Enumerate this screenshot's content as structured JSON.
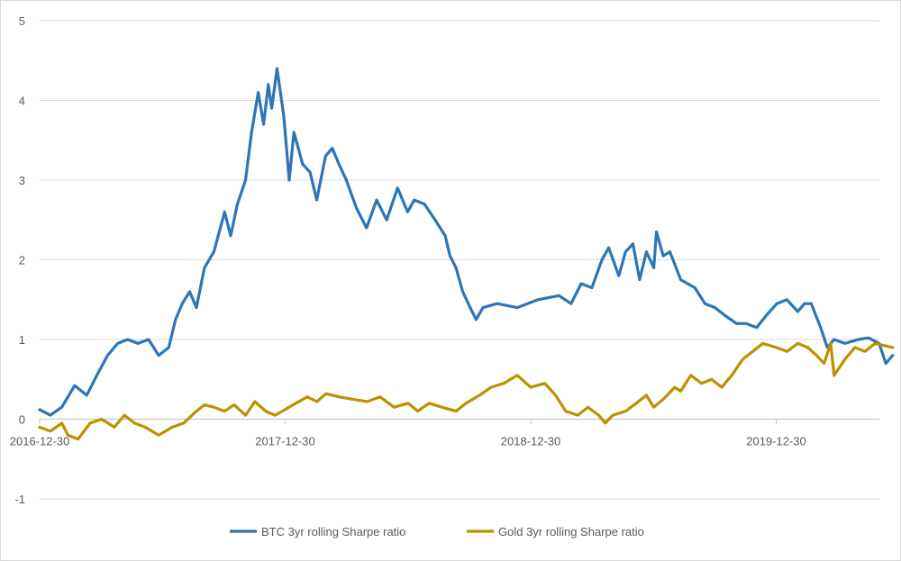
{
  "chart_data": {
    "type": "line",
    "title": "",
    "xlabel": "",
    "ylabel": "",
    "ylim": [
      -1,
      5
    ],
    "y_ticks": [
      "-1",
      "0",
      "1",
      "2",
      "3",
      "4",
      "5"
    ],
    "x_ticks": [
      "2016-12-30",
      "2017-12-30",
      "2018-12-30",
      "2019-12-30"
    ],
    "grid": "horizontal",
    "legend_position": "bottom",
    "series": [
      {
        "name": "BTC 3yr rolling Sharpe ratio",
        "color": "#2e75b6",
        "points": [
          [
            "2016-12-30",
            0.12
          ],
          [
            "2017-01-15",
            0.05
          ],
          [
            "2017-02-01",
            0.15
          ],
          [
            "2017-02-20",
            0.42
          ],
          [
            "2017-03-10",
            0.3
          ],
          [
            "2017-03-25",
            0.55
          ],
          [
            "2017-04-10",
            0.8
          ],
          [
            "2017-04-25",
            0.95
          ],
          [
            "2017-05-10",
            1.0
          ],
          [
            "2017-05-25",
            0.95
          ],
          [
            "2017-06-10",
            1.0
          ],
          [
            "2017-06-25",
            0.8
          ],
          [
            "2017-07-10",
            0.9
          ],
          [
            "2017-07-20",
            1.25
          ],
          [
            "2017-07-30",
            1.45
          ],
          [
            "2017-08-10",
            1.6
          ],
          [
            "2017-08-20",
            1.4
          ],
          [
            "2017-09-01",
            1.9
          ],
          [
            "2017-09-15",
            2.1
          ],
          [
            "2017-10-01",
            2.6
          ],
          [
            "2017-10-10",
            2.3
          ],
          [
            "2017-10-20",
            2.7
          ],
          [
            "2017-11-01",
            3.0
          ],
          [
            "2017-11-10",
            3.6
          ],
          [
            "2017-11-20",
            4.1
          ],
          [
            "2017-11-28",
            3.7
          ],
          [
            "2017-12-05",
            4.2
          ],
          [
            "2017-12-10",
            3.9
          ],
          [
            "2017-12-18",
            4.4
          ],
          [
            "2017-12-28",
            3.8
          ],
          [
            "2018-01-05",
            3.0
          ],
          [
            "2018-01-12",
            3.6
          ],
          [
            "2018-01-25",
            3.2
          ],
          [
            "2018-02-05",
            3.1
          ],
          [
            "2018-02-15",
            2.75
          ],
          [
            "2018-02-28",
            3.3
          ],
          [
            "2018-03-10",
            3.4
          ],
          [
            "2018-03-20",
            3.2
          ],
          [
            "2018-03-31",
            3.0
          ],
          [
            "2018-04-15",
            2.65
          ],
          [
            "2018-04-30",
            2.4
          ],
          [
            "2018-05-15",
            2.75
          ],
          [
            "2018-05-30",
            2.5
          ],
          [
            "2018-06-15",
            2.9
          ],
          [
            "2018-06-30",
            2.6
          ],
          [
            "2018-07-10",
            2.75
          ],
          [
            "2018-07-25",
            2.7
          ],
          [
            "2018-08-10",
            2.5
          ],
          [
            "2018-08-25",
            2.3
          ],
          [
            "2018-09-01",
            2.05
          ],
          [
            "2018-09-10",
            1.9
          ],
          [
            "2018-09-20",
            1.6
          ],
          [
            "2018-10-01",
            1.4
          ],
          [
            "2018-10-10",
            1.25
          ],
          [
            "2018-10-20",
            1.4
          ],
          [
            "2018-11-10",
            1.45
          ],
          [
            "2018-12-10",
            1.4
          ],
          [
            "2019-01-10",
            1.5
          ],
          [
            "2019-02-10",
            1.55
          ],
          [
            "2019-02-28",
            1.45
          ],
          [
            "2019-03-15",
            1.7
          ],
          [
            "2019-03-31",
            1.65
          ],
          [
            "2019-04-15",
            2.0
          ],
          [
            "2019-04-25",
            2.15
          ],
          [
            "2019-05-10",
            1.8
          ],
          [
            "2019-05-20",
            2.1
          ],
          [
            "2019-05-31",
            2.2
          ],
          [
            "2019-06-10",
            1.75
          ],
          [
            "2019-06-20",
            2.1
          ],
          [
            "2019-07-01",
            1.9
          ],
          [
            "2019-07-05",
            2.35
          ],
          [
            "2019-07-15",
            2.05
          ],
          [
            "2019-07-25",
            2.1
          ],
          [
            "2019-08-10",
            1.75
          ],
          [
            "2019-08-31",
            1.65
          ],
          [
            "2019-09-15",
            1.45
          ],
          [
            "2019-09-30",
            1.4
          ],
          [
            "2019-10-15",
            1.3
          ],
          [
            "2019-11-01",
            1.2
          ],
          [
            "2019-11-15",
            1.2
          ],
          [
            "2019-12-01",
            1.15
          ],
          [
            "2019-12-15",
            1.3
          ],
          [
            "2019-12-31",
            1.45
          ],
          [
            "2020-01-15",
            1.5
          ],
          [
            "2020-01-31",
            1.35
          ],
          [
            "2020-02-10",
            1.45
          ],
          [
            "2020-02-20",
            1.45
          ],
          [
            "2020-03-05",
            1.15
          ],
          [
            "2020-03-15",
            0.9
          ],
          [
            "2020-03-25",
            1.0
          ],
          [
            "2020-04-10",
            0.95
          ],
          [
            "2020-04-30",
            1.0
          ],
          [
            "2020-05-15",
            1.02
          ],
          [
            "2020-05-31",
            0.95
          ],
          [
            "2020-06-10",
            0.7
          ],
          [
            "2020-06-20",
            0.8
          ]
        ]
      },
      {
        "name": "Gold 3yr rolling Sharpe ratio",
        "color": "#bf9000",
        "points": [
          [
            "2016-12-30",
            -0.1
          ],
          [
            "2017-01-15",
            -0.15
          ],
          [
            "2017-02-01",
            -0.05
          ],
          [
            "2017-02-10",
            -0.2
          ],
          [
            "2017-02-25",
            -0.25
          ],
          [
            "2017-03-15",
            -0.05
          ],
          [
            "2017-04-01",
            0.0
          ],
          [
            "2017-04-20",
            -0.1
          ],
          [
            "2017-05-05",
            0.05
          ],
          [
            "2017-05-20",
            -0.05
          ],
          [
            "2017-06-05",
            -0.1
          ],
          [
            "2017-06-25",
            -0.2
          ],
          [
            "2017-07-15",
            -0.1
          ],
          [
            "2017-08-01",
            -0.05
          ],
          [
            "2017-08-20",
            0.1
          ],
          [
            "2017-09-01",
            0.18
          ],
          [
            "2017-09-15",
            0.15
          ],
          [
            "2017-10-01",
            0.1
          ],
          [
            "2017-10-15",
            0.18
          ],
          [
            "2017-11-01",
            0.05
          ],
          [
            "2017-11-15",
            0.22
          ],
          [
            "2017-12-01",
            0.1
          ],
          [
            "2017-12-15",
            0.05
          ],
          [
            "2017-12-30",
            0.12
          ],
          [
            "2018-01-15",
            0.2
          ],
          [
            "2018-02-01",
            0.28
          ],
          [
            "2018-02-15",
            0.22
          ],
          [
            "2018-03-01",
            0.32
          ],
          [
            "2018-03-20",
            0.28
          ],
          [
            "2018-04-10",
            0.25
          ],
          [
            "2018-05-01",
            0.22
          ],
          [
            "2018-05-20",
            0.28
          ],
          [
            "2018-06-10",
            0.15
          ],
          [
            "2018-07-01",
            0.2
          ],
          [
            "2018-07-15",
            0.1
          ],
          [
            "2018-08-01",
            0.2
          ],
          [
            "2018-08-20",
            0.15
          ],
          [
            "2018-09-10",
            0.1
          ],
          [
            "2018-09-25",
            0.2
          ],
          [
            "2018-10-15",
            0.3
          ],
          [
            "2018-11-01",
            0.4
          ],
          [
            "2018-11-20",
            0.45
          ],
          [
            "2018-12-10",
            0.55
          ],
          [
            "2018-12-30",
            0.4
          ],
          [
            "2019-01-20",
            0.45
          ],
          [
            "2019-02-05",
            0.3
          ],
          [
            "2019-02-20",
            0.1
          ],
          [
            "2019-03-10",
            0.05
          ],
          [
            "2019-03-25",
            0.15
          ],
          [
            "2019-04-10",
            0.05
          ],
          [
            "2019-04-20",
            -0.05
          ],
          [
            "2019-05-01",
            0.05
          ],
          [
            "2019-05-20",
            0.1
          ],
          [
            "2019-06-05",
            0.2
          ],
          [
            "2019-06-20",
            0.3
          ],
          [
            "2019-07-01",
            0.15
          ],
          [
            "2019-07-15",
            0.25
          ],
          [
            "2019-08-01",
            0.4
          ],
          [
            "2019-08-10",
            0.35
          ],
          [
            "2019-08-25",
            0.55
          ],
          [
            "2019-09-10",
            0.45
          ],
          [
            "2019-09-25",
            0.5
          ],
          [
            "2019-10-10",
            0.4
          ],
          [
            "2019-10-25",
            0.55
          ],
          [
            "2019-11-10",
            0.75
          ],
          [
            "2019-11-25",
            0.85
          ],
          [
            "2019-12-10",
            0.95
          ],
          [
            "2019-12-30",
            0.9
          ],
          [
            "2020-01-15",
            0.85
          ],
          [
            "2020-01-31",
            0.95
          ],
          [
            "2020-02-15",
            0.9
          ],
          [
            "2020-02-28",
            0.8
          ],
          [
            "2020-03-10",
            0.7
          ],
          [
            "2020-03-20",
            0.95
          ],
          [
            "2020-03-25",
            0.55
          ],
          [
            "2020-04-10",
            0.75
          ],
          [
            "2020-04-25",
            0.9
          ],
          [
            "2020-05-10",
            0.85
          ],
          [
            "2020-05-25",
            0.95
          ],
          [
            "2020-06-20",
            0.9
          ]
        ]
      }
    ]
  }
}
